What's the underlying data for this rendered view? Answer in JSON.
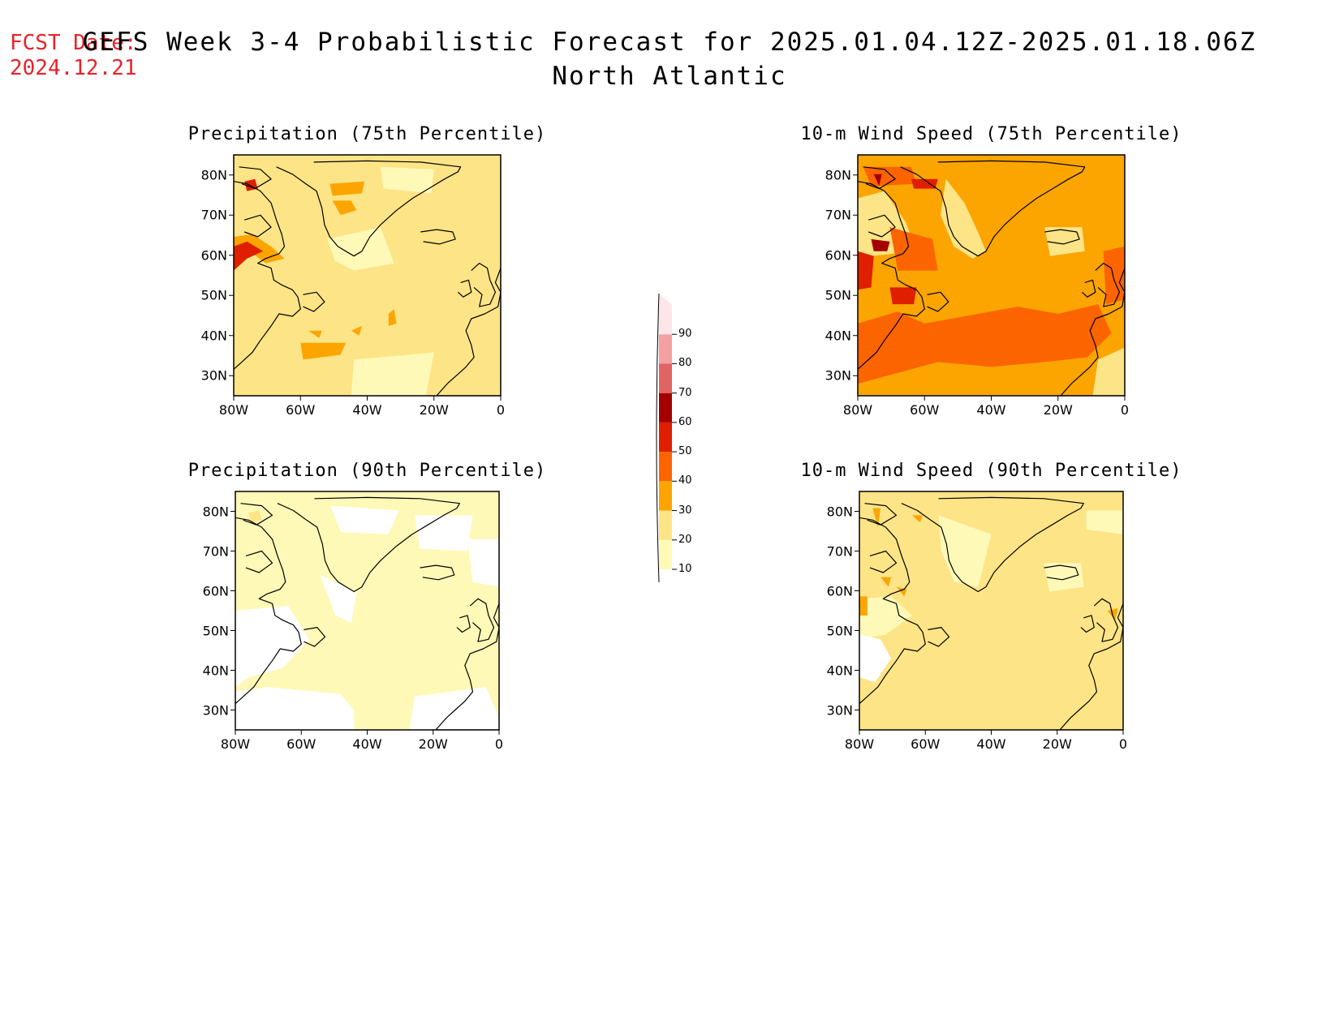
{
  "header": {
    "fcst_label": "FCST Date:",
    "fcst_date": "2024.12.21",
    "title_line1": "GEFS Week 3-4 Probabilistic Forecast for 2025.01.04.12Z-2025.01.18.06Z",
    "title_line2": "North Atlantic"
  },
  "colorbar": {
    "levels": [
      "10",
      "20",
      "30",
      "40",
      "50",
      "60",
      "70",
      "80",
      "90"
    ],
    "colors": [
      "#fff9b8",
      "#fde486",
      "#fca500",
      "#fc6400",
      "#e01e00",
      "#a50000",
      "#e06464",
      "#f5a0a0",
      "#fde5ea"
    ]
  },
  "chart_data": [
    {
      "type": "map",
      "title": "Precipitation (75th Percentile)",
      "x_ticks": [
        "80W",
        "60W",
        "40W",
        "20W",
        "0"
      ],
      "y_ticks": [
        "80N",
        "70N",
        "60N",
        "50N",
        "40N",
        "30N"
      ],
      "lon_range": [
        -80,
        0
      ],
      "lat_range": [
        25,
        85
      ],
      "background_level": "20"
    },
    {
      "type": "map",
      "title": "10-m Wind Speed (75th Percentile)",
      "x_ticks": [
        "80W",
        "60W",
        "40W",
        "20W",
        "0"
      ],
      "y_ticks": [
        "80N",
        "70N",
        "60N",
        "50N",
        "40N",
        "30N"
      ],
      "lon_range": [
        -80,
        0
      ],
      "lat_range": [
        25,
        85
      ],
      "background_level": "30"
    },
    {
      "type": "map",
      "title": "Precipitation (90th Percentile)",
      "x_ticks": [
        "80W",
        "60W",
        "40W",
        "20W",
        "0"
      ],
      "y_ticks": [
        "80N",
        "70N",
        "60N",
        "50N",
        "40N",
        "30N"
      ],
      "lon_range": [
        -80,
        0
      ],
      "lat_range": [
        25,
        85
      ],
      "background_level": "10"
    },
    {
      "type": "map",
      "title": "10-m Wind Speed (90th Percentile)",
      "x_ticks": [
        "80W",
        "60W",
        "40W",
        "20W",
        "0"
      ],
      "y_ticks": [
        "80N",
        "70N",
        "60N",
        "50N",
        "40N",
        "30N"
      ],
      "lon_range": [
        -80,
        0
      ],
      "lat_range": [
        25,
        85
      ],
      "background_level": "20"
    }
  ]
}
